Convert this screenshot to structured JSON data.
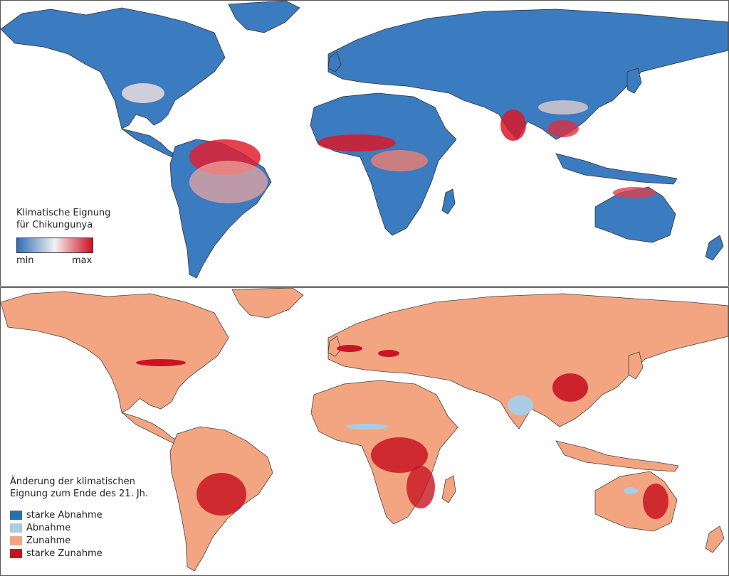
{
  "top_panel": {
    "legend": {
      "title_line1": "Klimatische Eignung",
      "title_line2": "für Chikungunya",
      "min_label": "min",
      "max_label": "max",
      "colors": {
        "low": "#2f6fb5",
        "mid": "#f3f1f1",
        "high": "#cc1020"
      }
    }
  },
  "bottom_panel": {
    "legend": {
      "title_line1": "Änderung der klimatischen",
      "title_line2": "Eignung zum Ende des 21. Jh.",
      "items": [
        {
          "label": "starke Abnahme",
          "color": "#2b6fb3"
        },
        {
          "label": "Abnahme",
          "color": "#a9cde4"
        },
        {
          "label": "Zunahme",
          "color": "#f3a582"
        },
        {
          "label": "starke Zunahme",
          "color": "#c81422"
        }
      ]
    }
  }
}
